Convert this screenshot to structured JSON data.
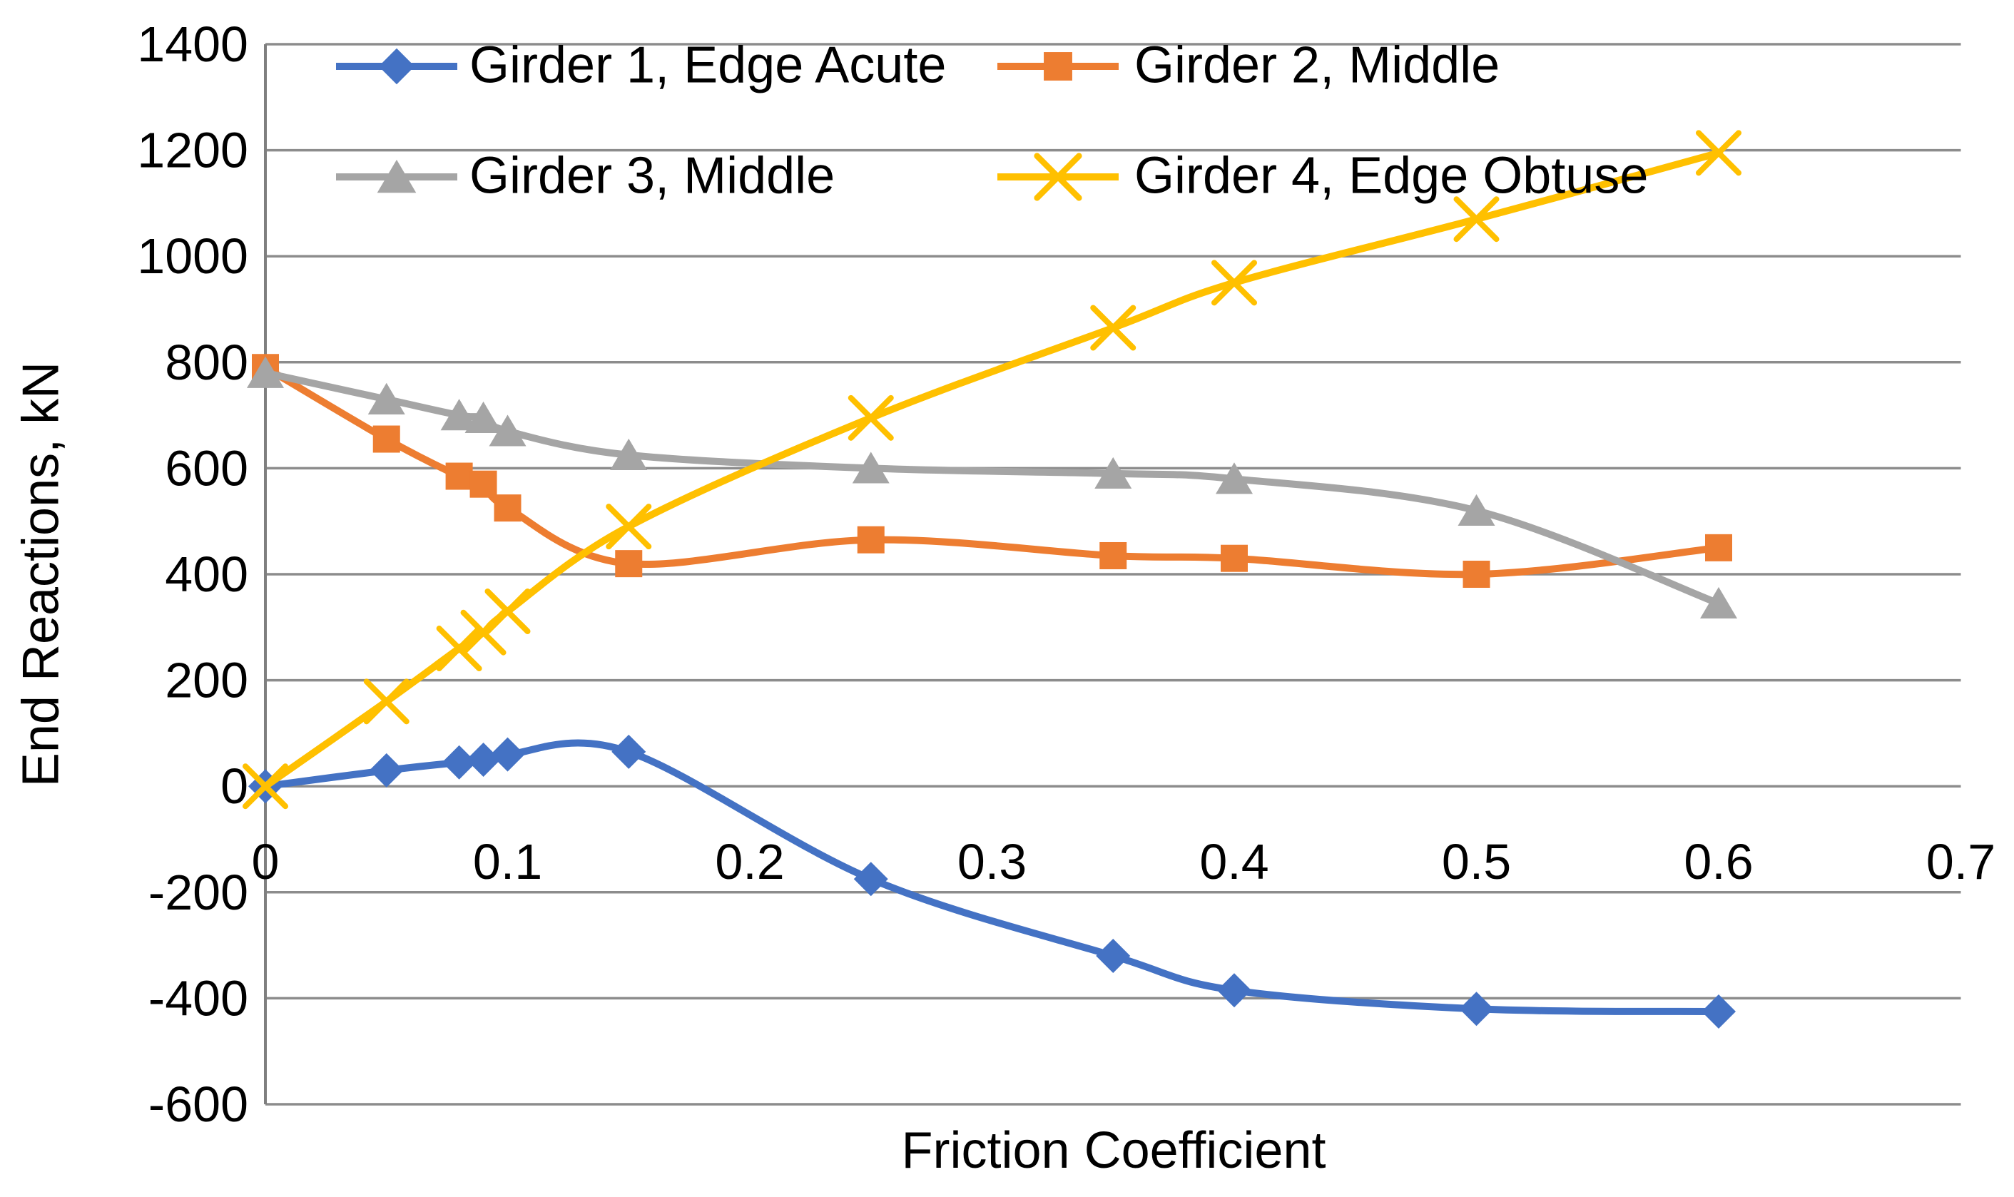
{
  "chart_data": {
    "type": "line",
    "title": "",
    "xlabel": "Friction Coefficient",
    "ylabel": "End Reactions, kN",
    "xlim": [
      0,
      0.7
    ],
    "ylim": [
      -600,
      1400
    ],
    "grid": "horizontal-only",
    "legend_position": "top-inside-two-rows",
    "x_tick_labels": [
      "0",
      "0.1",
      "0.2",
      "0.3",
      "0.4",
      "0.5",
      "0.6",
      "0.7"
    ],
    "x_tick_values": [
      0,
      0.1,
      0.2,
      0.3,
      0.4,
      0.5,
      0.6,
      0.7
    ],
    "y_tick_labels": [
      "1400",
      "1200",
      "1000",
      "800",
      "600",
      "400",
      "200",
      "0",
      "-200",
      "-400",
      "-600"
    ],
    "y_tick_values": [
      1400,
      1200,
      1000,
      800,
      600,
      400,
      200,
      0,
      -200,
      -400,
      -600
    ],
    "x": [
      0,
      0.05,
      0.08,
      0.09,
      0.1,
      0.15,
      0.25,
      0.35,
      0.4,
      0.5,
      0.6
    ],
    "series": [
      {
        "name": "Girder 1, Edge Acute",
        "color": "#4472C4",
        "marker": "diamond",
        "values": [
          0,
          30,
          45,
          50,
          60,
          65,
          -175,
          -320,
          -385,
          -420,
          -425
        ]
      },
      {
        "name": "Girder 2, Middle",
        "color": "#ED7D31",
        "marker": "square",
        "values": [
          790,
          655,
          585,
          570,
          525,
          420,
          465,
          435,
          430,
          400,
          450
        ]
      },
      {
        "name": "Girder 3, Middle",
        "color": "#A5A5A5",
        "marker": "triangle",
        "values": [
          780,
          730,
          700,
          695,
          670,
          625,
          600,
          590,
          580,
          520,
          345
        ]
      },
      {
        "name": "Girder 4, Edge Obtuse",
        "color": "#FFC000",
        "marker": "x",
        "values": [
          0,
          160,
          260,
          290,
          330,
          490,
          695,
          865,
          950,
          1070,
          1195
        ]
      }
    ],
    "colors": {
      "grid": "#8C8C8C",
      "axis": "#7F7F7F",
      "text": "#000000",
      "background": "#FFFFFF"
    }
  }
}
